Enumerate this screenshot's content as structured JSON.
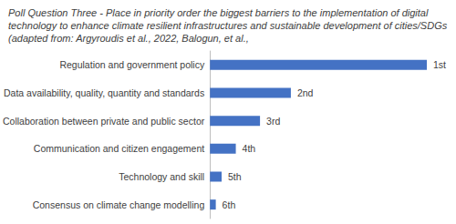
{
  "chart_data": {
    "type": "bar",
    "orientation": "horizontal",
    "title": "Poll Question Three - Place in priority order the biggest barriers to the implementation of digital technology to enhance climate resilient infrastructures and sustainable development of cities/SDGs (adapted from: Argyroudis et al., 2022, Balogun, et al.,",
    "categories": [
      "Regulation and government policy",
      "Data availability, quality, quantity and standards",
      "Collaboration between private and public sector",
      "Communication and citizen engagement",
      "Technology and skill",
      "Consensus on climate change modelling"
    ],
    "values": [
      26,
      9.7,
      6,
      3.1,
      1.4,
      0.7
    ],
    "annotations": [
      "1st",
      "2nd",
      "3rd",
      "4th",
      "5th",
      "6th"
    ],
    "color": "#4472c4",
    "tick_labels": "y",
    "grid": false,
    "data_labels": false
  }
}
